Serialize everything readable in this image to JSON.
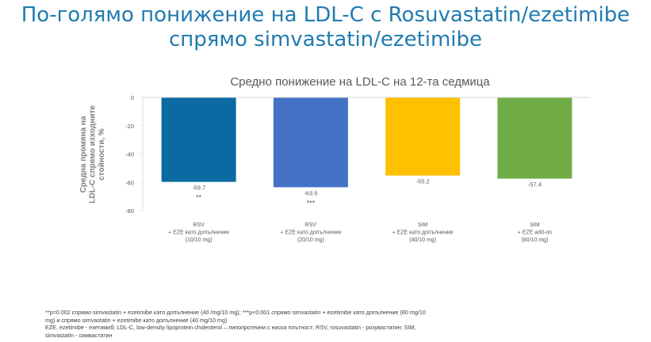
{
  "slide": {
    "title_line1": "По-голямо понижение на LDL-C с Rosuvastatin/ezetimibe",
    "title_line2": "спрямо simvastatin/ezetimibe"
  },
  "chart_data": {
    "type": "bar",
    "title": "Средно понижение на LDL-C на 12-та седмица",
    "ylabel": "Средна промяна на LDL-C спрямо изходните стойности, %",
    "ylim": [
      -80,
      0
    ],
    "yticks": [
      0,
      -20,
      -40,
      -60,
      -80
    ],
    "categories": [
      [
        "RSV",
        "+ EZE като допълнение",
        "(10/10 mg)"
      ],
      [
        "RSV",
        "+ EZE като допълнение",
        "(20/10 mg)"
      ],
      [
        "SIM",
        "+ EZE като допълнение",
        "(40/10 mg)"
      ],
      [
        "SIM",
        "+ EZE add-on",
        "(80/10 mg)"
      ]
    ],
    "values": [
      -59.7,
      -63.5,
      -55.2,
      -57.4
    ],
    "value_labels": [
      "-59.7",
      "-63.5",
      "-55.2",
      "-57.4"
    ],
    "significance": [
      "**",
      "***",
      "",
      ""
    ],
    "colors": [
      "#0a6aa1",
      "#4472c4",
      "#ffc000",
      "#70ad47"
    ],
    "grid": false
  },
  "footnotes": {
    "line1_a": "**p=0.002 ",
    "line1_b": "спрямо",
    "line1_c": " simvastatin + ezetimibe като допълнение (40 /mg/10 mg); ***p<0.001 ",
    "line1_d": "спрямо",
    "line1_e": " simvastatin + ezetimibe като допълнение (80 mg/10",
    "line2": "mg) и спрямо simvastatin + ezetimibe като допълнение (40 mg/10 mg)",
    "line3": "EZE, ezetimibe - езетимиб; LDL-C, low-density lipoprotein cholesterol – липопротеини с ниска плътност; RSV, rosuvastatin - розувастатин; SIM,",
    "line4": "simvastatin - симвастатин"
  }
}
